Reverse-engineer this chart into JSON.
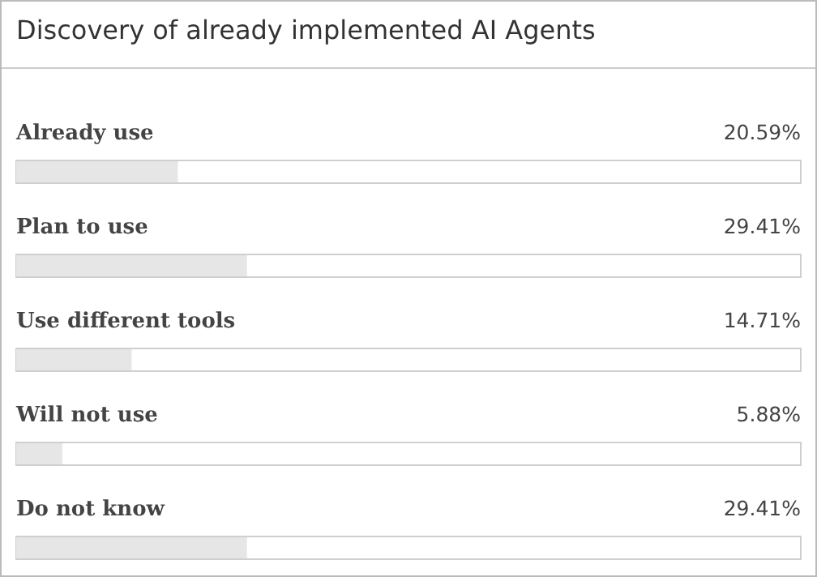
{
  "chart_data": {
    "type": "bar",
    "orientation": "horizontal",
    "title": "Discovery of already implemented AI Agents",
    "categories": [
      "Already use",
      "Plan to use",
      "Use different tools",
      "Will not use",
      "Do not know"
    ],
    "values": [
      20.59,
      29.41,
      14.71,
      5.88,
      29.41
    ],
    "value_labels": [
      "20.59%",
      "29.41%",
      "14.71%",
      "5.88%",
      "29.41%"
    ],
    "color": "#e6e6e6",
    "xlim": [
      0,
      100
    ]
  }
}
